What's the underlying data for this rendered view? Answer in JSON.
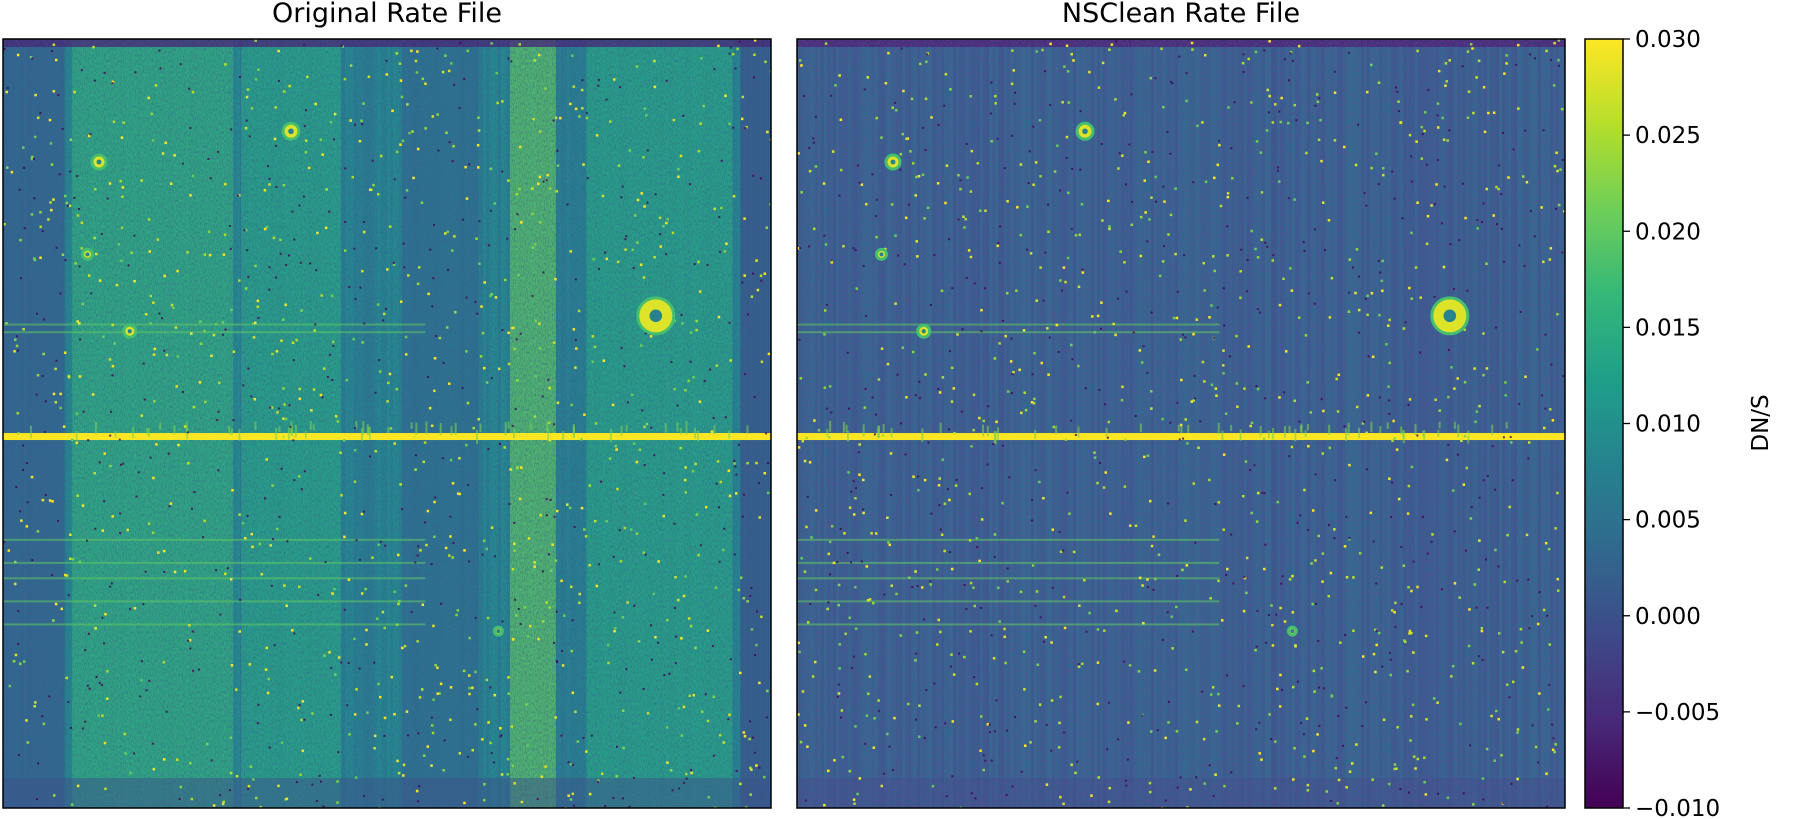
{
  "chart_data": [
    {
      "type": "heatmap",
      "title": "Original Rate File",
      "colormap": "viridis",
      "vmin": -0.01,
      "vmax": 0.03,
      "features": {
        "background": 0.008,
        "bright_columns": [
          {
            "from": 0.09,
            "to": 0.3,
            "value": 0.016
          },
          {
            "from": 0.31,
            "to": 0.44,
            "value": 0.014
          },
          {
            "from": 0.66,
            "to": 0.72,
            "value": 0.02
          },
          {
            "from": 0.76,
            "to": 0.95,
            "value": 0.014
          }
        ],
        "dark_columns": [
          {
            "from": 0.0,
            "to": 0.08,
            "value": 0.002
          },
          {
            "from": 0.52,
            "to": 0.62,
            "value": 0.004
          },
          {
            "from": 0.96,
            "to": 1.0,
            "value": 0.0
          }
        ],
        "bright_row": {
          "at": 0.515,
          "value": 0.03
        },
        "faint_rows": [
          0.37,
          0.38,
          0.65,
          0.68,
          0.7,
          0.73,
          0.76
        ]
      }
    },
    {
      "type": "heatmap",
      "title": "NSClean Rate File",
      "colormap": "viridis",
      "vmin": -0.01,
      "vmax": 0.03,
      "features": {
        "background": 0.003,
        "bright_columns": [],
        "dark_columns": [],
        "bright_row": {
          "at": 0.515,
          "value": 0.03
        },
        "faint_rows": [
          0.37,
          0.38,
          0.65,
          0.68,
          0.7,
          0.73,
          0.76
        ]
      }
    }
  ],
  "colorbar": {
    "label": "DN/S",
    "ticks": [
      {
        "value": 0.03,
        "label": "0.030"
      },
      {
        "value": 0.025,
        "label": "0.025"
      },
      {
        "value": 0.02,
        "label": "0.020"
      },
      {
        "value": 0.015,
        "label": "0.015"
      },
      {
        "value": 0.01,
        "label": "0.010"
      },
      {
        "value": 0.005,
        "label": "0.005"
      },
      {
        "value": 0.0,
        "label": "0.000"
      },
      {
        "value": -0.005,
        "label": "−0.005"
      },
      {
        "value": -0.01,
        "label": "−0.010"
      }
    ],
    "colors": [
      "#440154",
      "#482878",
      "#3e4989",
      "#31688e",
      "#26828e",
      "#1f9e89",
      "#35b779",
      "#6ece58",
      "#b5de2b",
      "#fde725"
    ]
  }
}
